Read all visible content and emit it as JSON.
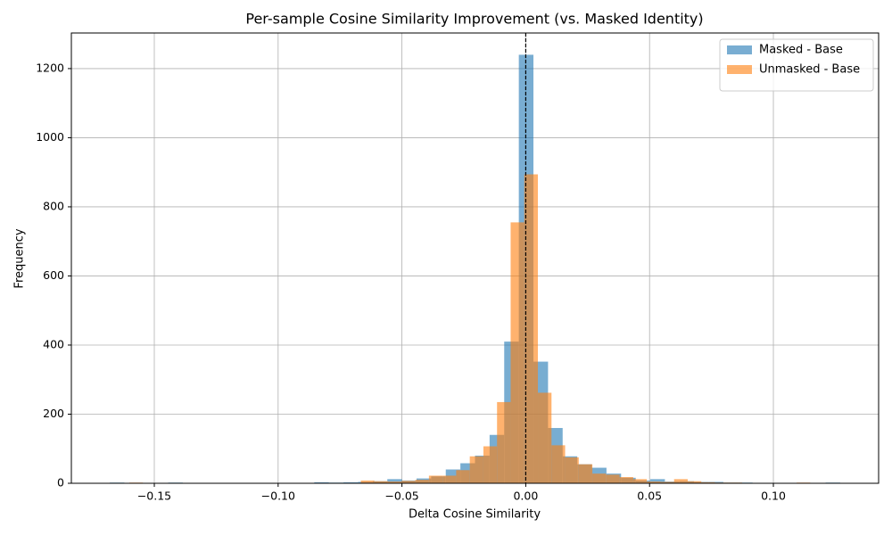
{
  "chart_data": {
    "type": "histogram",
    "title": "Per-sample Cosine Similarity Improvement (vs. Masked Identity)",
    "x_label": "Delta Cosine Similarity",
    "y_label": "Frequency",
    "xlim": [
      -0.1835,
      0.1425
    ],
    "ylim": [
      0,
      1303
    ],
    "xticks": [
      {
        "value": -0.15,
        "label": "−0.15"
      },
      {
        "value": -0.1,
        "label": "−0.10"
      },
      {
        "value": -0.05,
        "label": "−0.05"
      },
      {
        "value": 0,
        "label": "0.00"
      },
      {
        "value": 0.05,
        "label": "0.05"
      },
      {
        "value": 0.1,
        "label": "0.10"
      }
    ],
    "yticks": [
      0,
      200,
      400,
      600,
      800,
      1000,
      1200
    ],
    "grid": true,
    "vline": 0,
    "legend": "upper right",
    "opacity": 0.6,
    "series": [
      {
        "name": "Masked - Base",
        "color": "#1f77b4",
        "bins": [
          -0.168,
          -0.1621,
          -0.1562,
          -0.1503,
          -0.1444,
          -0.1385,
          -0.1326,
          -0.1267,
          -0.1208,
          -0.1149,
          -0.109,
          -0.1031,
          -0.0972,
          -0.0913,
          -0.0854,
          -0.0795,
          -0.0736,
          -0.0677,
          -0.0618,
          -0.0559,
          -0.05,
          -0.0441,
          -0.0382,
          -0.0323,
          -0.0264,
          -0.0205,
          -0.0146,
          -0.0087,
          -0.0028,
          0.0031,
          0.009,
          0.0149,
          0.0208,
          0.0267,
          0.0326,
          0.0385,
          0.0444,
          0.0503,
          0.0562,
          0.0621,
          0.068,
          0.0739,
          0.0798,
          0.0857,
          0.0916,
          0.0975,
          0.1034,
          0.1093,
          0.1152,
          0.1211,
          0.127
        ],
        "values": [
          2,
          0,
          0,
          0,
          2,
          0,
          0,
          0,
          0,
          0,
          0,
          0,
          0,
          0,
          3,
          2,
          3,
          4,
          6,
          12,
          8,
          14,
          20,
          40,
          58,
          80,
          140,
          410,
          1240,
          352,
          160,
          78,
          55,
          45,
          28,
          16,
          8,
          12,
          5,
          6,
          4,
          4,
          2,
          2,
          1,
          1,
          0,
          0,
          0,
          2
        ]
      },
      {
        "name": "Unmasked - Base",
        "color": "#ff7f0e",
        "bins": [
          -0.1601,
          -0.1546,
          -0.1491,
          -0.1436,
          -0.1381,
          -0.1326,
          -0.1271,
          -0.1216,
          -0.1161,
          -0.1106,
          -0.1051,
          -0.0996,
          -0.0941,
          -0.0886,
          -0.0831,
          -0.0776,
          -0.0721,
          -0.0666,
          -0.0611,
          -0.0556,
          -0.0501,
          -0.0446,
          -0.0391,
          -0.0336,
          -0.0281,
          -0.0226,
          -0.0171,
          -0.0116,
          -0.0061,
          -0.0006,
          0.0049,
          0.0104,
          0.0159,
          0.0214,
          0.0269,
          0.0324,
          0.0379,
          0.0434,
          0.0489,
          0.0544,
          0.0599,
          0.0654,
          0.0709,
          0.0764,
          0.0819,
          0.0874,
          0.0929,
          0.0984,
          0.1039,
          0.1094,
          0.1149
        ],
        "values": [
          2,
          0,
          0,
          0,
          0,
          0,
          0,
          0,
          0,
          0,
          0,
          0,
          0,
          0,
          0,
          0,
          0,
          8,
          6,
          5,
          7,
          10,
          22,
          22,
          38,
          78,
          107,
          235,
          755,
          894,
          262,
          110,
          75,
          55,
          28,
          25,
          18,
          12,
          5,
          4,
          12,
          6,
          3,
          2,
          2,
          1,
          1,
          0,
          0,
          2
        ]
      }
    ]
  }
}
